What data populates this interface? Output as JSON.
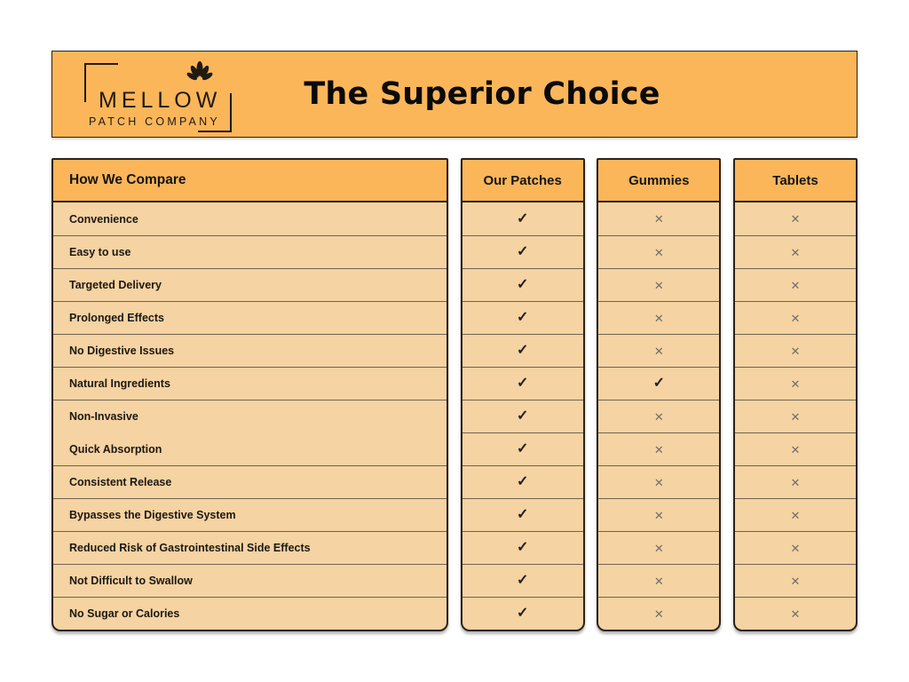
{
  "header": {
    "logo": {
      "name": "MELLOW",
      "subtitle": "PATCH COMPANY",
      "icon": "lotus-leaf-ornament"
    },
    "title": "The Superior Choice"
  },
  "comparison": {
    "features_header": "How We Compare",
    "features": [
      "Convenience",
      "Easy to use",
      "Targeted Delivery",
      "Prolonged Effects",
      "No Digestive Issues",
      "Natural Ingredients",
      "Non-Invasive",
      "Quick Absorption",
      "Consistent Release",
      "Bypasses the Digestive System",
      "Reduced Risk of Gastrointestinal Side Effects",
      "Not Difficult to Swallow",
      "No Sugar or Calories"
    ],
    "columns": [
      {
        "label": "Our Patches",
        "values": [
          true,
          true,
          true,
          true,
          true,
          true,
          true,
          true,
          true,
          true,
          true,
          true,
          true
        ]
      },
      {
        "label": "Gummies",
        "values": [
          false,
          false,
          false,
          false,
          false,
          true,
          false,
          false,
          false,
          false,
          false,
          false,
          false
        ]
      },
      {
        "label": "Tablets",
        "values": [
          false,
          false,
          false,
          false,
          false,
          false,
          false,
          false,
          false,
          false,
          false,
          false,
          false
        ]
      }
    ]
  },
  "icons": {
    "yes": "✓",
    "no": "✕"
  },
  "colors": {
    "accent": "#FBB65A",
    "row_bg": "#F5D3A2",
    "border": "#2B2318",
    "divider": "#6E6354",
    "check": "#23201B",
    "cross": "#6E6E6E",
    "page_bg": "#FFFFFF",
    "text": "#1F1A12",
    "title_text": "#0A0A0A"
  }
}
